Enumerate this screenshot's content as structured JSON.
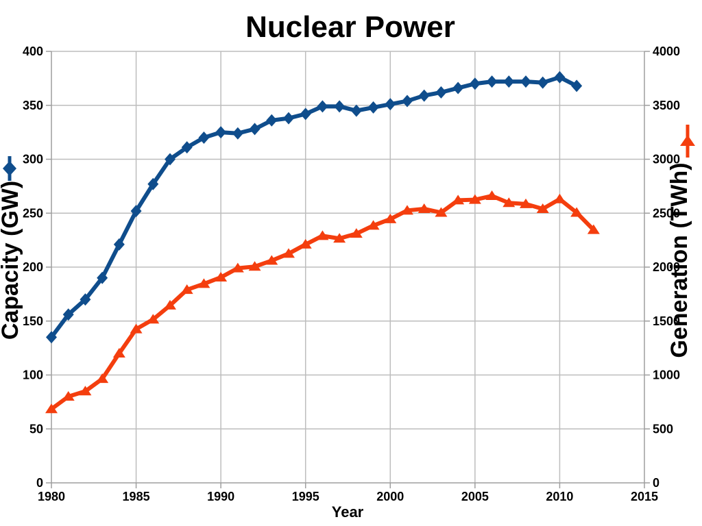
{
  "title": "Nuclear Power",
  "chart_data": {
    "type": "line",
    "title": "Nuclear Power",
    "xlabel": "Year",
    "xlim": [
      1980,
      2015
    ],
    "x_ticks": [
      1980,
      1985,
      1990,
      1995,
      2000,
      2005,
      2010,
      2015
    ],
    "grid": true,
    "legend_position": "outside-axis-markers",
    "background_color": "#ffffff",
    "grid_color": "#bdbdbd",
    "axis_color": "#9e9e9e",
    "text_color": "#000000",
    "series": [
      {
        "name": "Capacity",
        "ylabel": "Capacity (GW)",
        "axis": "left",
        "color": "#0f4d8c",
        "marker": "diamond",
        "ylim": [
          0,
          400
        ],
        "y_ticks": [
          0,
          50,
          100,
          150,
          200,
          250,
          300,
          350,
          400
        ],
        "x": [
          1980,
          1981,
          1982,
          1983,
          1984,
          1985,
          1986,
          1987,
          1988,
          1989,
          1990,
          1991,
          1992,
          1993,
          1994,
          1995,
          1996,
          1997,
          1998,
          1999,
          2000,
          2001,
          2002,
          2003,
          2004,
          2005,
          2006,
          2007,
          2008,
          2009,
          2010,
          2011
        ],
        "values": [
          135,
          156,
          170,
          190,
          221,
          252,
          277,
          300,
          311,
          320,
          325,
          324,
          328,
          336,
          338,
          342,
          349,
          349,
          345,
          348,
          351,
          354,
          359,
          362,
          366,
          370,
          372,
          372,
          372,
          371,
          376,
          368
        ]
      },
      {
        "name": "Generation",
        "ylabel": "Generation (TWh)",
        "axis": "right",
        "color": "#f43e0e",
        "marker": "triangle-up",
        "ylim": [
          0,
          4000
        ],
        "y_ticks": [
          0,
          500,
          1000,
          1500,
          2000,
          2500,
          3000,
          3500,
          4000
        ],
        "x": [
          1980,
          1981,
          1982,
          1983,
          1984,
          1985,
          1986,
          1987,
          1988,
          1989,
          1990,
          1991,
          1992,
          1993,
          1994,
          1995,
          1996,
          1997,
          1998,
          1999,
          2000,
          2001,
          2002,
          2003,
          2004,
          2005,
          2006,
          2007,
          2008,
          2009,
          2010,
          2011,
          2012
        ],
        "values": [
          684,
          800,
          849,
          964,
          1200,
          1425,
          1515,
          1645,
          1790,
          1845,
          1905,
          1990,
          2005,
          2060,
          2125,
          2210,
          2290,
          2265,
          2310,
          2385,
          2445,
          2525,
          2540,
          2505,
          2620,
          2625,
          2660,
          2595,
          2585,
          2540,
          2630,
          2505,
          2345
        ]
      }
    ]
  }
}
